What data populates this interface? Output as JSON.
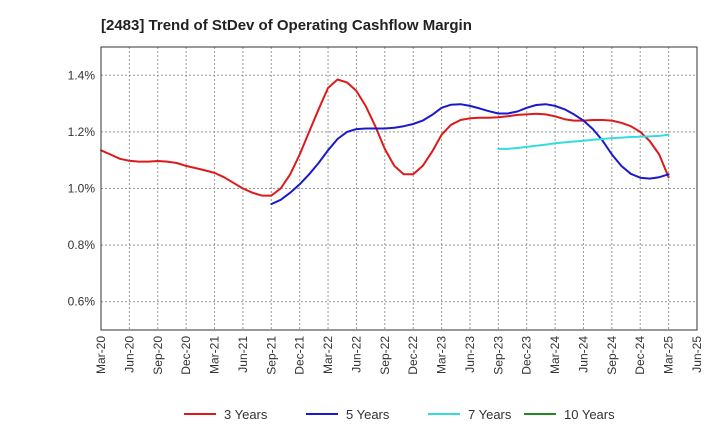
{
  "chart_data": {
    "type": "line",
    "title": "[2483]  Trend of StDev of Operating Cashflow Margin",
    "xlabel": "",
    "ylabel": "",
    "ylim": [
      0.5,
      1.5
    ],
    "y_ticks": [
      "0.6%",
      "0.8%",
      "1.0%",
      "1.2%",
      "1.4%"
    ],
    "y_tick_values": [
      0.6,
      0.8,
      1.0,
      1.2,
      1.4
    ],
    "x_ticks": [
      "Mar-20",
      "Jun-20",
      "Sep-20",
      "Dec-20",
      "Mar-21",
      "Jun-21",
      "Sep-21",
      "Dec-21",
      "Mar-22",
      "Jun-22",
      "Sep-22",
      "Dec-22",
      "Mar-23",
      "Jun-23",
      "Sep-23",
      "Dec-23",
      "Mar-24",
      "Jun-24",
      "Sep-24",
      "Dec-24",
      "Mar-25",
      "Jun-25"
    ],
    "grid": true,
    "legend_position": "bottom",
    "series": [
      {
        "name": "3 Years",
        "color": "#dd1a1a",
        "x": [
          "Mar-20",
          "Apr-20",
          "May-20",
          "Jun-20",
          "Jul-20",
          "Aug-20",
          "Sep-20",
          "Oct-20",
          "Nov-20",
          "Dec-20",
          "Jan-21",
          "Feb-21",
          "Mar-21",
          "Apr-21",
          "May-21",
          "Jun-21",
          "Jul-21",
          "Aug-21",
          "Sep-21",
          "Oct-21",
          "Nov-21",
          "Dec-21",
          "Jan-22",
          "Feb-22",
          "Mar-22",
          "Apr-22",
          "May-22",
          "Jun-22",
          "Jul-22",
          "Aug-22",
          "Sep-22",
          "Oct-22",
          "Nov-22",
          "Dec-22",
          "Jan-23",
          "Feb-23",
          "Mar-23",
          "Apr-23",
          "May-23",
          "Jun-23",
          "Jul-23",
          "Aug-23",
          "Sep-23",
          "Oct-23",
          "Nov-23",
          "Dec-23",
          "Jan-24",
          "Feb-24",
          "Mar-24",
          "Apr-24",
          "May-24",
          "Jun-24",
          "Jul-24",
          "Aug-24",
          "Sep-24",
          "Oct-24",
          "Nov-24",
          "Dec-24",
          "Jan-25",
          "Feb-25",
          "Mar-25"
        ],
        "values": [
          1.135,
          1.12,
          1.105,
          1.098,
          1.095,
          1.095,
          1.097,
          1.095,
          1.09,
          1.08,
          1.072,
          1.064,
          1.055,
          1.04,
          1.02,
          1.0,
          0.985,
          0.975,
          0.975,
          1.0,
          1.05,
          1.12,
          1.2,
          1.28,
          1.355,
          1.385,
          1.375,
          1.345,
          1.29,
          1.22,
          1.14,
          1.08,
          1.05,
          1.05,
          1.08,
          1.13,
          1.19,
          1.225,
          1.242,
          1.248,
          1.25,
          1.25,
          1.252,
          1.255,
          1.26,
          1.262,
          1.264,
          1.262,
          1.255,
          1.245,
          1.24,
          1.24,
          1.242,
          1.242,
          1.24,
          1.232,
          1.22,
          1.2,
          1.168,
          1.12,
          1.04
        ]
      },
      {
        "name": "5 Years",
        "color": "#1a1acc",
        "x": [
          "Sep-21",
          "Oct-21",
          "Nov-21",
          "Dec-21",
          "Jan-22",
          "Feb-22",
          "Mar-22",
          "Apr-22",
          "May-22",
          "Jun-22",
          "Jul-22",
          "Aug-22",
          "Sep-22",
          "Oct-22",
          "Nov-22",
          "Dec-22",
          "Jan-23",
          "Feb-23",
          "Mar-23",
          "Apr-23",
          "May-23",
          "Jun-23",
          "Jul-23",
          "Aug-23",
          "Sep-23",
          "Oct-23",
          "Nov-23",
          "Dec-23",
          "Jan-24",
          "Feb-24",
          "Mar-24",
          "Apr-24",
          "May-24",
          "Jun-24",
          "Jul-24",
          "Aug-24",
          "Sep-24",
          "Oct-24",
          "Nov-24",
          "Dec-24",
          "Jan-25",
          "Feb-25",
          "Mar-25"
        ],
        "values": [
          0.945,
          0.96,
          0.985,
          1.015,
          1.05,
          1.09,
          1.135,
          1.175,
          1.2,
          1.21,
          1.212,
          1.212,
          1.212,
          1.215,
          1.22,
          1.228,
          1.24,
          1.26,
          1.285,
          1.296,
          1.298,
          1.292,
          1.283,
          1.273,
          1.265,
          1.265,
          1.272,
          1.285,
          1.295,
          1.298,
          1.292,
          1.28,
          1.262,
          1.24,
          1.21,
          1.17,
          1.12,
          1.08,
          1.052,
          1.038,
          1.035,
          1.04,
          1.05
        ]
      },
      {
        "name": "7 Years",
        "color": "#33dddd",
        "x": [
          "Sep-23",
          "Oct-23",
          "Nov-23",
          "Dec-23",
          "Jan-24",
          "Feb-24",
          "Mar-24",
          "Apr-24",
          "May-24",
          "Jun-24",
          "Jul-24",
          "Aug-24",
          "Sep-24",
          "Oct-24",
          "Nov-24",
          "Dec-24",
          "Jan-25",
          "Feb-25",
          "Mar-25"
        ],
        "values": [
          1.14,
          1.14,
          1.143,
          1.147,
          1.151,
          1.155,
          1.16,
          1.163,
          1.166,
          1.169,
          1.172,
          1.175,
          1.178,
          1.18,
          1.182,
          1.183,
          1.184,
          1.186,
          1.19
        ]
      },
      {
        "name": "10 Years",
        "color": "#228822",
        "x": [],
        "values": []
      }
    ]
  }
}
